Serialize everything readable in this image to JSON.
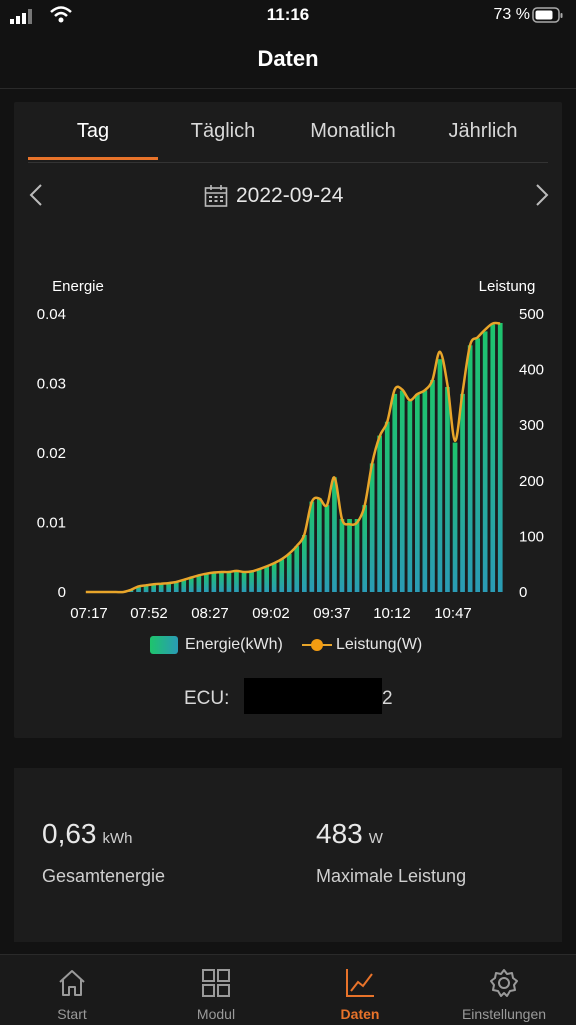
{
  "status": {
    "time": "11:16",
    "battery": "73 %"
  },
  "header": {
    "title": "Daten"
  },
  "tabs": [
    {
      "label": "Tag",
      "active": true
    },
    {
      "label": "Täglich"
    },
    {
      "label": "Monatlich"
    },
    {
      "label": "Jährlich"
    }
  ],
  "date": "2022-09-24",
  "chart_data": {
    "type": "bar",
    "left_axis_label": "Energie",
    "right_axis_label": "Leistung",
    "left_ticks": [
      "0.04",
      "0.03",
      "0.02",
      "0.01",
      "0"
    ],
    "right_ticks": [
      "500",
      "400",
      "300",
      "200",
      "100",
      "0"
    ],
    "x_ticks": [
      "07:17",
      "07:52",
      "08:27",
      "09:02",
      "09:37",
      "10:12",
      "10:47"
    ],
    "ylim_energy": [
      0,
      0.04
    ],
    "ylim_power": [
      0,
      500
    ],
    "energy": [
      0,
      0,
      0,
      0,
      0,
      0,
      0.0003,
      0.0008,
      0.001,
      0.0011,
      0.0012,
      0.0013,
      0.0015,
      0.0018,
      0.0021,
      0.0024,
      0.0027,
      0.0029,
      0.003,
      0.003,
      0.0031,
      0.0029,
      0.003,
      0.0033,
      0.0037,
      0.0041,
      0.0047,
      0.0055,
      0.0066,
      0.0082,
      0.013,
      0.0135,
      0.0125,
      0.0165,
      0.0105,
      0.0105,
      0.0105,
      0.0125,
      0.0185,
      0.0225,
      0.0245,
      0.0285,
      0.029,
      0.0275,
      0.0285,
      0.029,
      0.0305,
      0.0335,
      0.0295,
      0.0215,
      0.0285,
      0.0355,
      0.0365,
      0.0375,
      0.0385,
      0.0387
    ],
    "power": [
      0,
      0,
      0,
      0,
      0,
      0,
      4,
      10,
      12,
      14,
      15,
      16,
      18,
      22,
      26,
      30,
      33,
      35,
      36,
      36,
      38,
      36,
      37,
      41,
      46,
      52,
      59,
      69,
      83,
      103,
      162,
      168,
      156,
      206,
      131,
      122,
      125,
      155,
      231,
      280,
      306,
      364,
      364,
      345,
      356,
      363,
      381,
      432,
      372,
      272,
      360,
      444,
      458,
      472,
      483,
      483
    ],
    "legend": [
      "Energie(kWh)",
      "Leistung(W)"
    ],
    "colors": {
      "bar_top": "#1ec46c",
      "bar_bottom": "#2a9bb5",
      "line": "#e8a52a",
      "grid": "#2a2a2a"
    }
  },
  "ecu": {
    "label": "ECU:",
    "value_tail": "2"
  },
  "stats": {
    "total_energy": {
      "value": "0,63",
      "unit": "kWh",
      "label": "Gesamtenergie"
    },
    "max_power": {
      "value": "483",
      "unit": "W",
      "label": "Maximale Leistung"
    }
  },
  "tabbar": [
    {
      "label": "Start",
      "icon": "home-icon"
    },
    {
      "label": "Modul",
      "icon": "grid-icon"
    },
    {
      "label": "Daten",
      "icon": "chart-icon",
      "active": true
    },
    {
      "label": "Einstellungen",
      "icon": "gear-icon"
    }
  ]
}
